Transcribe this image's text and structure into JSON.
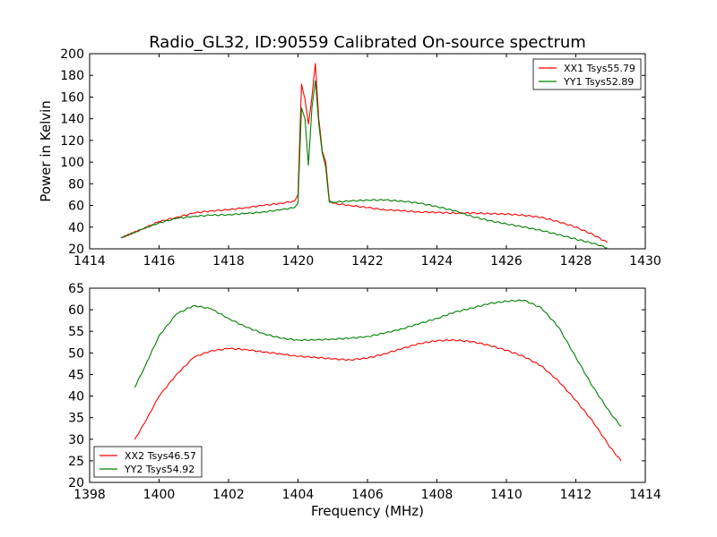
{
  "chart_data": [
    {
      "type": "line",
      "title": "Radio_GL32, ID:90559 Calibrated On-source spectrum",
      "xlabel": "",
      "ylabel": "Power in Kelvin",
      "xlim": [
        1414,
        1430
      ],
      "ylim": [
        20,
        200
      ],
      "xticks": [
        1414,
        1416,
        1418,
        1420,
        1422,
        1424,
        1426,
        1428,
        1430
      ],
      "yticks": [
        20,
        40,
        60,
        80,
        100,
        120,
        140,
        160,
        180,
        200
      ],
      "legend_position": "top-right",
      "series": [
        {
          "name": "XX1 Tsys55.79",
          "color": "#ff0000",
          "x": [
            1414.9,
            1415.5,
            1416.0,
            1416.5,
            1417.0,
            1417.5,
            1418.0,
            1418.5,
            1419.0,
            1419.5,
            1419.9,
            1420.0,
            1420.1,
            1420.2,
            1420.3,
            1420.4,
            1420.5,
            1420.6,
            1420.7,
            1420.8,
            1420.9,
            1421.0,
            1421.5,
            1422.0,
            1422.5,
            1423.0,
            1423.5,
            1424.0,
            1424.5,
            1425.0,
            1425.5,
            1426.0,
            1426.5,
            1427.0,
            1427.5,
            1428.0,
            1428.5,
            1428.9
          ],
          "y": [
            30,
            38,
            45,
            49,
            53,
            55,
            56,
            58,
            60,
            62,
            64,
            70,
            172,
            158,
            135,
            160,
            191,
            140,
            110,
            100,
            65,
            62,
            60,
            58,
            56,
            55,
            54,
            53.5,
            53,
            53,
            52.5,
            52,
            51,
            49,
            45,
            40,
            33,
            26
          ]
        },
        {
          "name": "YY1 Tsys52.89",
          "color": "#008000",
          "x": [
            1414.9,
            1415.5,
            1416.0,
            1416.5,
            1417.0,
            1417.5,
            1418.0,
            1418.5,
            1419.0,
            1419.5,
            1419.9,
            1420.0,
            1420.1,
            1420.2,
            1420.3,
            1420.4,
            1420.5,
            1420.6,
            1420.7,
            1420.8,
            1420.9,
            1421.0,
            1421.5,
            1422.0,
            1422.5,
            1423.0,
            1423.5,
            1424.0,
            1424.5,
            1425.0,
            1425.5,
            1426.0,
            1426.5,
            1427.0,
            1427.5,
            1428.0,
            1428.5,
            1428.9
          ],
          "y": [
            30,
            38,
            44,
            48,
            50,
            51,
            51.5,
            52.5,
            54,
            56,
            58,
            62,
            150,
            140,
            97,
            150,
            175,
            135,
            108,
            95,
            63,
            63,
            64,
            65,
            65,
            64,
            62,
            59,
            55,
            50,
            46,
            43,
            40,
            37,
            33,
            29,
            25,
            21
          ]
        }
      ]
    },
    {
      "type": "line",
      "title": "",
      "xlabel": "Frequency (MHz)",
      "ylabel": "",
      "xlim": [
        1398,
        1414
      ],
      "ylim": [
        20,
        65
      ],
      "xticks": [
        1398,
        1400,
        1402,
        1404,
        1406,
        1408,
        1410,
        1412,
        1414
      ],
      "yticks": [
        20,
        25,
        30,
        35,
        40,
        45,
        50,
        55,
        60,
        65
      ],
      "legend_position": "bottom-left",
      "series": [
        {
          "name": "XX2 Tsys46.57",
          "color": "#ff0000",
          "x": [
            1399.3,
            1399.6,
            1400.0,
            1400.5,
            1401.0,
            1401.5,
            1402.0,
            1402.5,
            1403.0,
            1403.5,
            1404.0,
            1404.5,
            1405.0,
            1405.5,
            1406.0,
            1406.5,
            1407.0,
            1407.5,
            1408.0,
            1408.5,
            1409.0,
            1409.5,
            1410.0,
            1410.5,
            1411.0,
            1411.5,
            1412.0,
            1412.5,
            1413.0,
            1413.3
          ],
          "y": [
            30,
            34,
            40,
            45,
            49,
            50.5,
            51,
            50.8,
            50.2,
            49.8,
            49.2,
            49,
            48.6,
            48.4,
            48.8,
            49.8,
            51,
            52.2,
            52.8,
            53,
            52.6,
            51.8,
            50.6,
            49.2,
            47,
            43.5,
            39,
            34,
            28,
            25
          ]
        },
        {
          "name": "YY2 Tsys54.92",
          "color": "#008000",
          "x": [
            1399.3,
            1399.6,
            1400.0,
            1400.5,
            1401.0,
            1401.5,
            1402.0,
            1402.5,
            1403.0,
            1403.5,
            1404.0,
            1404.5,
            1405.0,
            1405.5,
            1406.0,
            1406.5,
            1407.0,
            1407.5,
            1408.0,
            1408.5,
            1409.0,
            1409.5,
            1410.0,
            1410.5,
            1411.0,
            1411.5,
            1412.0,
            1412.5,
            1413.0,
            1413.3
          ],
          "y": [
            42,
            47,
            54,
            59,
            61,
            60.2,
            58,
            56,
            54.5,
            53.4,
            53,
            53,
            53.2,
            53.4,
            53.8,
            54.6,
            55.6,
            56.8,
            58,
            59.4,
            60.4,
            61.4,
            62,
            62.2,
            60.5,
            56,
            49,
            42,
            36,
            33
          ]
        }
      ]
    }
  ]
}
